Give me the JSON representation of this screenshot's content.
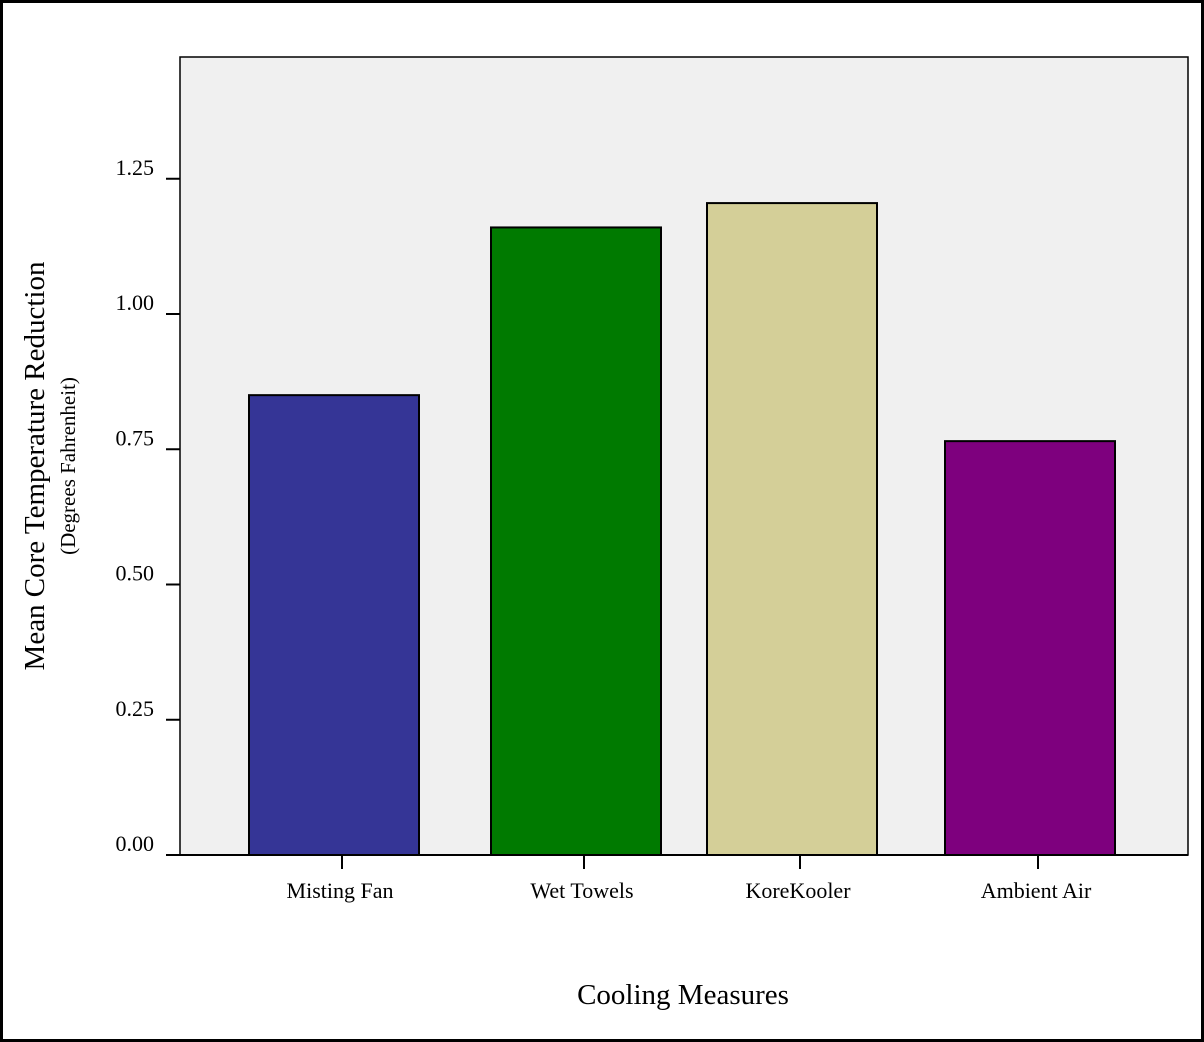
{
  "chart_data": {
    "type": "bar",
    "categories": [
      "Misting Fan",
      "Wet Towels",
      "KoreKooler",
      "Ambient Air"
    ],
    "values": [
      0.85,
      1.16,
      1.205,
      0.765
    ],
    "colors": [
      "#353596",
      "#007a00",
      "#d4cf98",
      "#7e007e"
    ],
    "plot_background": "#f0f0f0",
    "xlabel": "Cooling Measures",
    "ylabel": "Mean Core Temperature Reduction",
    "ylabel_sub": "(Degrees Fahrenheit)",
    "ylim": [
      0,
      1.4
    ],
    "yticks": [
      "0.00",
      "0.25",
      "0.50",
      "0.75",
      "1.00",
      "1.25"
    ],
    "grid": false,
    "legend": "none"
  }
}
